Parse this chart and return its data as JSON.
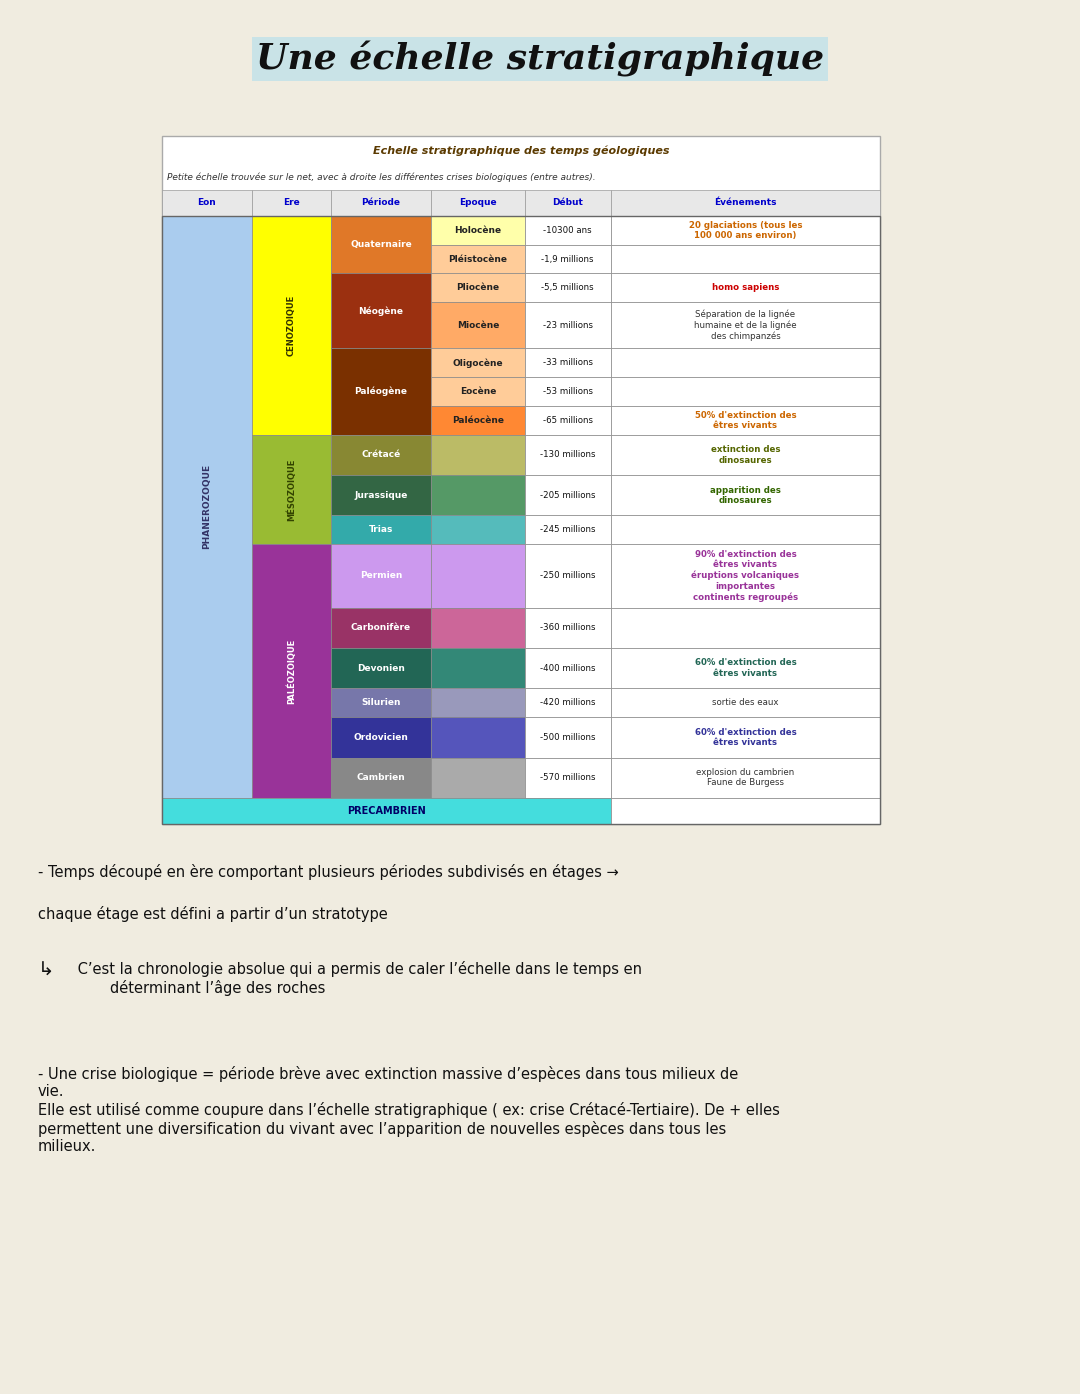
{
  "title": "Une échelle stratigraphique",
  "bg_color": "#f0ece0",
  "table_title": "Echelle stratigraphique des temps géologiques",
  "table_subtitle": "Petite échelle trouvée sur le net, avec à droite les différentes crises biologiques (entre autres).",
  "headers": [
    "Eon",
    "Ere",
    "Période",
    "Epoque",
    "Début",
    "Événements"
  ],
  "col_header_color": "#0000cc",
  "rows": [
    {
      "ere": "CENOZOIQUE",
      "ere_color": "#ffff00",
      "ere_text_color": "#333300",
      "periode": "Quaternaire",
      "periode_color": "#e07828",
      "periode_span": 2,
      "epoque": "Holocène",
      "epoque_color": "#ffffaa",
      "debut": "-10300 ans",
      "event": "20 glaciations (tous les\n100 000 ans environ)",
      "event_color": "#cc6600",
      "event_bold": true
    },
    {
      "ere": "CENOZOIQUE",
      "ere_color": "#ffff00",
      "ere_text_color": "#333300",
      "periode": "Quaternaire",
      "periode_color": "#e07828",
      "periode_span": 0,
      "epoque": "Pléistocène",
      "epoque_color": "#ffcc99",
      "debut": "-1,9 millions",
      "event": "",
      "event_color": "#000000",
      "event_bold": false
    },
    {
      "ere": "CENOZOIQUE",
      "ere_color": "#ffff00",
      "ere_text_color": "#333300",
      "periode": "Néogène",
      "periode_color": "#9b3010",
      "periode_span": 2,
      "epoque": "Pliocène",
      "epoque_color": "#ffcc99",
      "debut": "-5,5 millions",
      "event": "homo sapiens",
      "event_color": "#cc0000",
      "event_bold": true
    },
    {
      "ere": "CENOZOIQUE",
      "ere_color": "#ffff00",
      "ere_text_color": "#333300",
      "periode": "Néogène",
      "periode_color": "#9b3010",
      "periode_span": 0,
      "epoque": "Miocène",
      "epoque_color": "#ffaa66",
      "debut": "-23 millions",
      "event": "Séparation de la lignée\nhumaine et de la lignée\ndes chimpanzés",
      "event_color": "#333333",
      "event_bold": false
    },
    {
      "ere": "CENOZOIQUE",
      "ere_color": "#ffff00",
      "ere_text_color": "#333300",
      "periode": "Paléogène",
      "periode_color": "#7a3000",
      "periode_span": 3,
      "epoque": "Oligocène",
      "epoque_color": "#ffcc99",
      "debut": "-33 millions",
      "event": "",
      "event_color": "#000000",
      "event_bold": false
    },
    {
      "ere": "CENOZOIQUE",
      "ere_color": "#ffff00",
      "ere_text_color": "#333300",
      "periode": "Paléogène",
      "periode_color": "#7a3000",
      "periode_span": 0,
      "epoque": "Eocène",
      "epoque_color": "#ffcc99",
      "debut": "-53 millions",
      "event": "",
      "event_color": "#000000",
      "event_bold": false
    },
    {
      "ere": "CENOZOIQUE",
      "ere_color": "#ffff00",
      "ere_text_color": "#333300",
      "periode": "Paléogène",
      "periode_color": "#7a3000",
      "periode_span": 0,
      "epoque": "Paléocène",
      "epoque_color": "#ff8833",
      "debut": "-65 millions",
      "event": "50% d'extinction des\nêtres vivants",
      "event_color": "#cc6600",
      "event_bold": true
    },
    {
      "ere": "MÉSOZOIQUE",
      "ere_color": "#99bb33",
      "ere_text_color": "#334400",
      "periode": "Crétacé",
      "periode_color": "#888833",
      "periode_span": 1,
      "epoque": "",
      "epoque_color": "#bbbb66",
      "debut": "-130 millions",
      "event": "extinction des\ndinosaures",
      "event_color": "#556600",
      "event_bold": true
    },
    {
      "ere": "MÉSOZOIQUE",
      "ere_color": "#99bb33",
      "ere_text_color": "#334400",
      "periode": "Jurassique",
      "periode_color": "#336644",
      "periode_span": 1,
      "epoque": "",
      "epoque_color": "#559966",
      "debut": "-205 millions",
      "event": "apparition des\ndinosaures",
      "event_color": "#336600",
      "event_bold": true
    },
    {
      "ere": "MÉSOZOIQUE",
      "ere_color": "#99bb33",
      "ere_text_color": "#334400",
      "periode": "Trias",
      "periode_color": "#33aaaa",
      "periode_span": 1,
      "epoque": "",
      "epoque_color": "#55bbbb",
      "debut": "-245 millions",
      "event": "",
      "event_color": "#000000",
      "event_bold": false
    },
    {
      "ere": "PALÉOZOIQUE",
      "ere_color": "#993399",
      "ere_text_color": "#ffffff",
      "periode": "Permien",
      "periode_color": "#cc99ee",
      "periode_span": 1,
      "epoque": "",
      "epoque_color": "#cc99ee",
      "debut": "-250 millions",
      "event": "90% d'extinction des\nêtres vivants\néruptions volcaniques\nimportantes\ncontinents regroupés",
      "event_color": "#993399",
      "event_bold": true
    },
    {
      "ere": "PALÉOZOIQUE",
      "ere_color": "#993399",
      "ere_text_color": "#ffffff",
      "periode": "Carbonifère",
      "periode_color": "#993366",
      "periode_span": 1,
      "epoque": "",
      "epoque_color": "#cc6699",
      "debut": "-360 millions",
      "event": "",
      "event_color": "#000000",
      "event_bold": false
    },
    {
      "ere": "PALÉOZOIQUE",
      "ere_color": "#993399",
      "ere_text_color": "#ffffff",
      "periode": "Devonien",
      "periode_color": "#226655",
      "periode_span": 1,
      "epoque": "",
      "epoque_color": "#338877",
      "debut": "-400 millions",
      "event": "60% d'extinction des\nêtres vivants",
      "event_color": "#226655",
      "event_bold": true
    },
    {
      "ere": "PALÉOZOIQUE",
      "ere_color": "#993399",
      "ere_text_color": "#ffffff",
      "periode": "Silurien",
      "periode_color": "#7777aa",
      "periode_span": 1,
      "epoque": "",
      "epoque_color": "#9999bb",
      "debut": "-420 millions",
      "event": "sortie des eaux",
      "event_color": "#333333",
      "event_bold": false
    },
    {
      "ere": "PALÉOZOIQUE",
      "ere_color": "#993399",
      "ere_text_color": "#ffffff",
      "periode": "Ordovicien",
      "periode_color": "#333399",
      "periode_span": 1,
      "epoque": "",
      "epoque_color": "#5555bb",
      "debut": "-500 millions",
      "event": "60% d'extinction des\nêtres vivants",
      "event_color": "#333399",
      "event_bold": true
    },
    {
      "ere": "PALÉOZOIQUE",
      "ere_color": "#993399",
      "ere_text_color": "#ffffff",
      "periode": "Cambrien",
      "periode_color": "#888888",
      "periode_span": 1,
      "epoque": "",
      "epoque_color": "#aaaaaa",
      "debut": "-570 millions",
      "event": "explosion du cambrien\nFaune de Burgess",
      "event_color": "#333333",
      "event_bold": false
    }
  ],
  "eon_color": "#aaccee",
  "eon_text": "PHANEROZOQUE",
  "precambrien_color": "#44dddd",
  "precambrien_text": "PRECAMBRIEN",
  "text1": "- Temps découpé en ère comportant plusieurs périodes subdivisés en étages →",
  "text2": "chaque étage est défini a partir d’un stratotype",
  "text3a": "↳",
  "text3b": " C’est la chronologie absolue qui a permis de caler l’échelle dans le temps en\n        déterminant l’âge des roches",
  "text4": "- Une crise biologique = période brève avec extinction massive d’espèces dans tous milieux de\nvie.\nElle est utilisé comme coupure dans l’échelle stratigraphique ( ex: crise Crétacé-Tertiaire). De + elles\npermettent une diversification du vivant avec l’apparition de nouvelles espèces dans tous les\nmilieux."
}
